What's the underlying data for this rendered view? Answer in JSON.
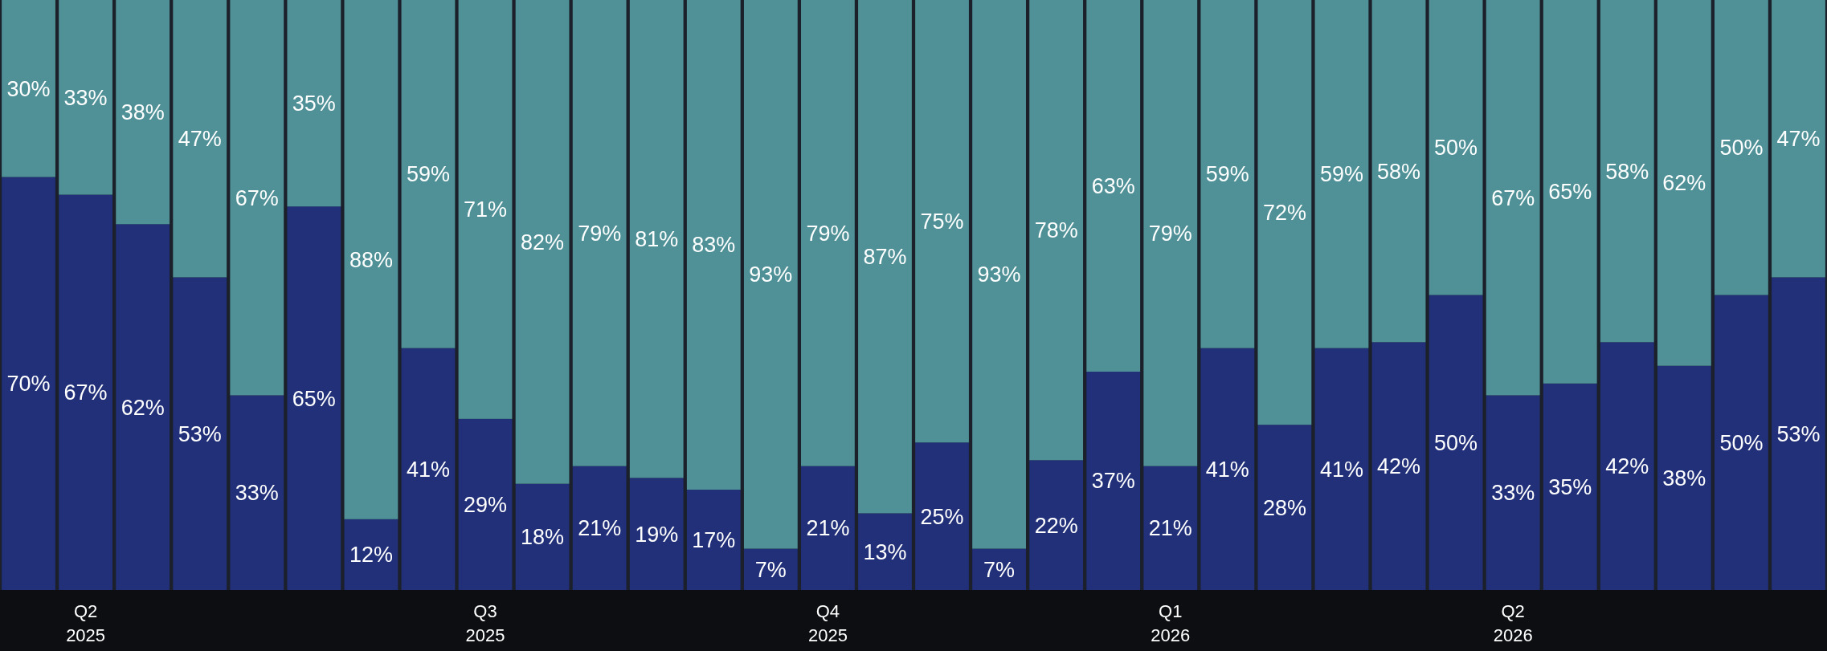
{
  "chart_data": {
    "type": "bar",
    "stacked": true,
    "tick_labels": "x",
    "ylim": [
      0,
      100
    ],
    "categories": [
      null,
      "Q2\n2025",
      null,
      null,
      null,
      null,
      null,
      null,
      "Q3\n2025",
      null,
      null,
      null,
      null,
      null,
      "Q4\n2025",
      null,
      null,
      null,
      null,
      null,
      "Q1\n2026",
      null,
      null,
      null,
      null,
      null,
      "Q2\n2026",
      null,
      null,
      null,
      null,
      null
    ],
    "series": [
      {
        "color": "#213078",
        "values": [
          70,
          67,
          62,
          53,
          33,
          65,
          12,
          41,
          29,
          18,
          21,
          19,
          17,
          7,
          21,
          13,
          25,
          7,
          22,
          37,
          21,
          41,
          28,
          41,
          42,
          50,
          33,
          35,
          42,
          38,
          50,
          53
        ],
        "value_labels": [
          "70%",
          "67%",
          "62%",
          "53%",
          "33%",
          "65%",
          "12%",
          "41%",
          "29%",
          "18%",
          "21%",
          "19%",
          "17%",
          "7%",
          "21%",
          "13%",
          "25%",
          "7%",
          "22%",
          "37%",
          "21%",
          "41%",
          "28%",
          "41%",
          "42%",
          "50%",
          "33%",
          "35%",
          "42%",
          "38%",
          "50%",
          "53%"
        ]
      },
      {
        "color": "#4f9197",
        "values": [
          30,
          33,
          38,
          47,
          67,
          35,
          88,
          59,
          71,
          82,
          79,
          81,
          83,
          93,
          79,
          87,
          75,
          93,
          78,
          63,
          79,
          59,
          72,
          59,
          58,
          50,
          67,
          65,
          58,
          62,
          50,
          47
        ],
        "value_labels": [
          "30%",
          "33%",
          "38%",
          "47%",
          "67%",
          "35%",
          "88%",
          "59%",
          "71%",
          "82%",
          "79%",
          "81%",
          "83%",
          "93%",
          "79%",
          "87%",
          "75%",
          "93%",
          "78%",
          "63%",
          "79%",
          "59%",
          "72%",
          "59%",
          "58%",
          "50%",
          "67%",
          "65%",
          "58%",
          "62%",
          "50%",
          "47%"
        ]
      }
    ]
  }
}
